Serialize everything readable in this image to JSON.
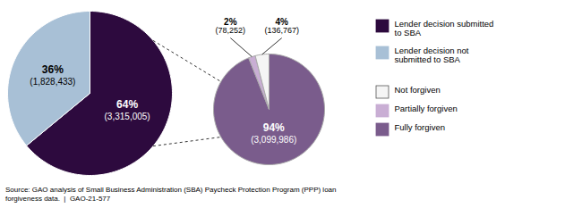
{
  "chart_data": {
    "type": "pie",
    "caption": "Source: GAO analysis of Small Business Administration (SBA) Paycheck Protection Program (PPP) loan\nforgiveness data.  |  GAO-21-577",
    "legend": "right",
    "legend_items": [
      {
        "label": "Lender decision submitted\nto SBA",
        "color": "#2d0a3e",
        "edgecolor": "#2d0a3e"
      },
      {
        "label": "Lender decision not\nsubmitted to SBA",
        "color": "#a8c0d6",
        "edgecolor": "#a8c0d6"
      },
      {
        "label": "Not forgiven",
        "color": "#f5f5f5",
        "edgecolor": "#555555"
      },
      {
        "label": "Partially forgiven",
        "color": "#c9aed4",
        "edgecolor": "#c9aed4"
      },
      {
        "label": "Fully forgiven",
        "color": "#7a5c8c",
        "edgecolor": "#7a5c8c"
      }
    ],
    "pies": [
      {
        "values": [
          64,
          36
        ],
        "colors": [
          "#2d0a3e",
          "#a8c0d6"
        ],
        "value_labels": [
          "64%",
          "36%"
        ],
        "count_labels": [
          "(3,315,005)",
          "(1,828,433)"
        ],
        "data_labels": true
      },
      {
        "values": [
          94,
          2,
          4
        ],
        "colors": [
          "#7a5c8c",
          "#c9aed4",
          "#f5f5f5"
        ],
        "value_labels": [
          "94%",
          "2%",
          "4%"
        ],
        "count_labels": [
          "(3,099,986)",
          "(78,252)",
          "(136,767)"
        ],
        "data_labels": true
      }
    ]
  }
}
